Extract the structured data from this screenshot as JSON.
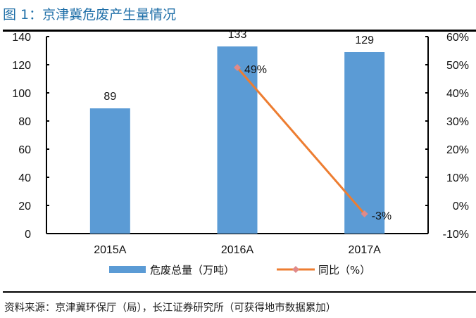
{
  "title": "图 1：京津冀危废产生量情况",
  "source": "资料来源：京津冀环保厅（局），长江证券研究所（可获得地市数据累加）",
  "chart_data": {
    "type": "bar+line",
    "categories": [
      "2015A",
      "2016A",
      "2017A"
    ],
    "series": [
      {
        "name": "危废总量（万吨）",
        "type": "bar",
        "axis": "left",
        "values": [
          89,
          133,
          129
        ],
        "labels": [
          "89",
          "133",
          "129"
        ],
        "color": "#5b9bd5"
      },
      {
        "name": "同比（%）",
        "type": "line",
        "axis": "right",
        "x": [
          "2016A",
          "2017A"
        ],
        "values": [
          49,
          -3
        ],
        "labels": [
          "49%",
          "-3%"
        ],
        "color": "#ed7d31"
      }
    ],
    "left_axis": {
      "ylim": [
        0,
        140
      ],
      "ticks": [
        "0",
        "20",
        "40",
        "60",
        "80",
        "100",
        "120",
        "140"
      ]
    },
    "right_axis": {
      "ylim": [
        -10,
        60
      ],
      "ticks": [
        "-10%",
        "0%",
        "10%",
        "20%",
        "30%",
        "40%",
        "50%",
        "60%"
      ]
    },
    "grid": false,
    "legend": "bottom"
  }
}
